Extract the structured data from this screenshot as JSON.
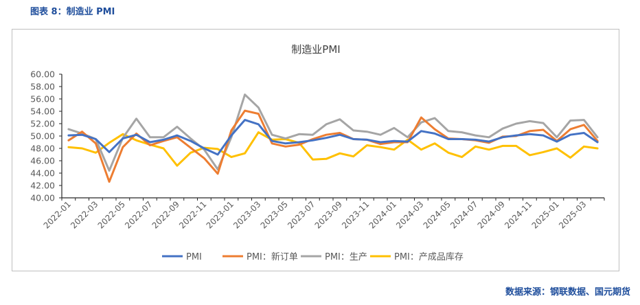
{
  "figure": {
    "title": "图表 8：制造业 PMI",
    "source": "数据来源：钢联数据、国元期货"
  },
  "colors": {
    "PMI": "#4472C4",
    "PMI：新订单": "#ED7D31",
    "PMI：生产": "#A5A5A5",
    "PMI：产成品库存": "#FFC000",
    "axis": "#262626",
    "text": "#595959"
  },
  "chart_data": {
    "type": "line",
    "title": "制造业PMI",
    "xlabel": "",
    "ylabel": "",
    "ylim": [
      40,
      60
    ],
    "yticks": [
      "60.00",
      "58.00",
      "56.00",
      "54.00",
      "52.00",
      "50.00",
      "48.00",
      "46.00",
      "44.00",
      "42.00",
      "40.00"
    ],
    "x": [
      "2022-01",
      "2022-02",
      "2022-03",
      "2022-04",
      "2022-05",
      "2022-06",
      "2022-07",
      "2022-08",
      "2022-09",
      "2022-10",
      "2022-11",
      "2022-12",
      "2023-01",
      "2023-02",
      "2023-03",
      "2023-04",
      "2023-05",
      "2023-06",
      "2023-07",
      "2023-08",
      "2023-09",
      "2023-10",
      "2023-11",
      "2023-12",
      "2024-01",
      "2024-02",
      "2024-03",
      "2024-04",
      "2024-05",
      "2024-06",
      "2024-07",
      "2024-08",
      "2024-09",
      "2024-10",
      "2024-11",
      "2024-12",
      "2025-01",
      "2025-02",
      "2025-03",
      "2025-04"
    ],
    "xtick_labels": [
      "2022-01",
      "2022-03",
      "2022-05",
      "2022-07",
      "2022-09",
      "2022-11",
      "2023-01",
      "2023-03",
      "2023-05",
      "2023-07",
      "2023-09",
      "2023-11",
      "2024-01",
      "2024-03",
      "2024-05",
      "2024-07",
      "2024-09",
      "2024-11",
      "2025-01",
      "2025-03"
    ],
    "legend_position": "bottom",
    "series": [
      {
        "name": "PMI",
        "values": [
          50.1,
          50.2,
          49.5,
          47.4,
          49.6,
          50.2,
          49.0,
          49.4,
          50.1,
          49.2,
          48.0,
          47.0,
          50.1,
          52.6,
          51.9,
          49.2,
          48.8,
          49.0,
          49.3,
          49.7,
          50.2,
          49.5,
          49.4,
          49.0,
          49.2,
          49.1,
          50.8,
          50.4,
          49.5,
          49.5,
          49.4,
          49.1,
          49.8,
          50.1,
          50.3,
          50.1,
          49.1,
          50.2,
          50.5,
          49.0
        ]
      },
      {
        "name": "PMI：新订单",
        "values": [
          49.3,
          50.7,
          48.8,
          42.6,
          48.2,
          50.4,
          48.5,
          49.2,
          49.8,
          48.1,
          46.4,
          43.9,
          50.9,
          54.1,
          53.6,
          48.8,
          48.3,
          48.6,
          49.5,
          50.2,
          50.5,
          49.5,
          49.4,
          48.7,
          49.0,
          49.0,
          53.0,
          51.1,
          49.6,
          49.5,
          49.3,
          48.9,
          49.9,
          50.0,
          50.8,
          51.0,
          49.2,
          51.1,
          51.8,
          49.2
        ]
      },
      {
        "name": "PMI：生产",
        "values": [
          51.1,
          50.4,
          49.5,
          44.4,
          49.7,
          52.8,
          49.8,
          49.8,
          51.5,
          49.6,
          47.8,
          44.6,
          49.8,
          56.7,
          54.6,
          50.2,
          49.6,
          50.3,
          50.2,
          51.9,
          52.7,
          50.9,
          50.7,
          50.2,
          51.3,
          49.8,
          52.2,
          52.9,
          50.8,
          50.6,
          50.1,
          49.8,
          51.2,
          52.0,
          52.4,
          52.1,
          49.8,
          52.5,
          52.6,
          49.8
        ]
      },
      {
        "name": "PMI：产成品库存",
        "values": [
          48.2,
          48.0,
          47.3,
          48.9,
          50.3,
          49.3,
          48.6,
          48.0,
          45.2,
          47.3,
          48.1,
          47.9,
          46.6,
          47.2,
          50.6,
          49.4,
          49.5,
          48.9,
          46.2,
          46.3,
          47.2,
          46.7,
          48.5,
          48.2,
          47.8,
          49.4,
          47.8,
          48.8,
          47.3,
          46.6,
          48.3,
          47.8,
          48.4,
          48.4,
          46.9,
          47.4,
          48.0,
          46.5,
          48.3,
          48.0
        ]
      }
    ]
  }
}
